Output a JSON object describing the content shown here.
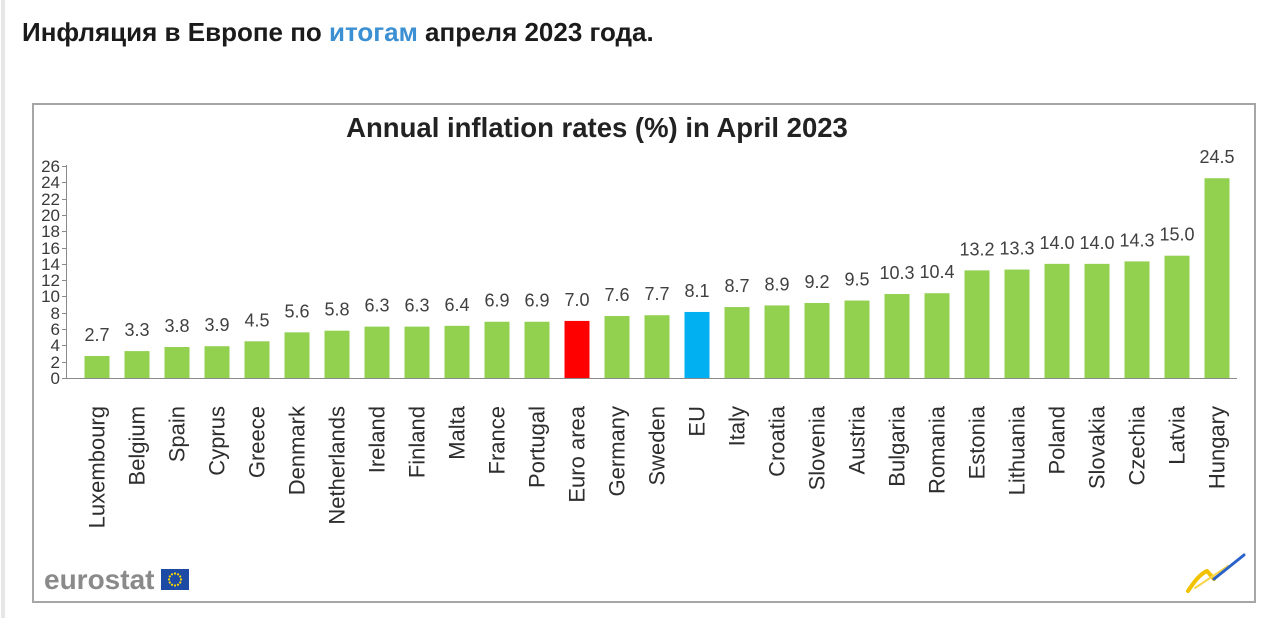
{
  "heading": {
    "text_before": "Инфляция в Европе по ",
    "link_text": "итогам",
    "text_after": " апреля 2023 года."
  },
  "colors": {
    "heading_text": "#1b1b1b",
    "link": "#3b8fd3",
    "frame_border": "#a6a6a6"
  },
  "chart_data": {
    "type": "bar",
    "title": "Annual inflation rates (%) in April 2023",
    "xlabel": "",
    "ylabel": "",
    "ylim": [
      0,
      26
    ],
    "yticks": [
      0,
      2,
      4,
      6,
      8,
      10,
      12,
      14,
      16,
      18,
      20,
      22,
      24,
      26
    ],
    "grid": false,
    "legend": false,
    "categories": [
      "Luxembourg",
      "Belgium",
      "Spain",
      "Cyprus",
      "Greece",
      "Denmark",
      "Netherlands",
      "Ireland",
      "Finland",
      "Malta",
      "France",
      "Portugal",
      "Euro area",
      "Germany",
      "Sweden",
      "EU",
      "Italy",
      "Croatia",
      "Slovenia",
      "Austria",
      "Bulgaria",
      "Romania",
      "Estonia",
      "Lithuania",
      "Poland",
      "Slovakia",
      "Czechia",
      "Latvia",
      "Hungary"
    ],
    "values": [
      2.7,
      3.3,
      3.8,
      3.9,
      4.5,
      5.6,
      5.8,
      6.3,
      6.3,
      6.4,
      6.9,
      6.9,
      7.0,
      7.6,
      7.7,
      8.1,
      8.7,
      8.9,
      9.2,
      9.5,
      10.3,
      10.4,
      13.2,
      13.3,
      14.0,
      14.0,
      14.3,
      15.0,
      24.5
    ],
    "data_labels": [
      "2.7",
      "3.3",
      "3.8",
      "3.9",
      "4.5",
      "5.6",
      "5.8",
      "6.3",
      "6.3",
      "6.4",
      "6.9",
      "6.9",
      "7.0",
      "7.6",
      "7.7",
      "8.1",
      "8.7",
      "8.9",
      "9.2",
      "9.5",
      "10.3",
      "10.4",
      "13.2",
      "13.3",
      "14.0",
      "14.0",
      "14.3",
      "15.0",
      "24.5"
    ],
    "bar_color": "#92d050",
    "highlight_colors": {
      "Euro area": "#ff0000",
      "EU": "#00b0f0"
    }
  },
  "footer": {
    "logo_text": "eurostat",
    "flag_icon": "eu-flag-icon",
    "corner_icon": "statistics-explained-icon"
  }
}
